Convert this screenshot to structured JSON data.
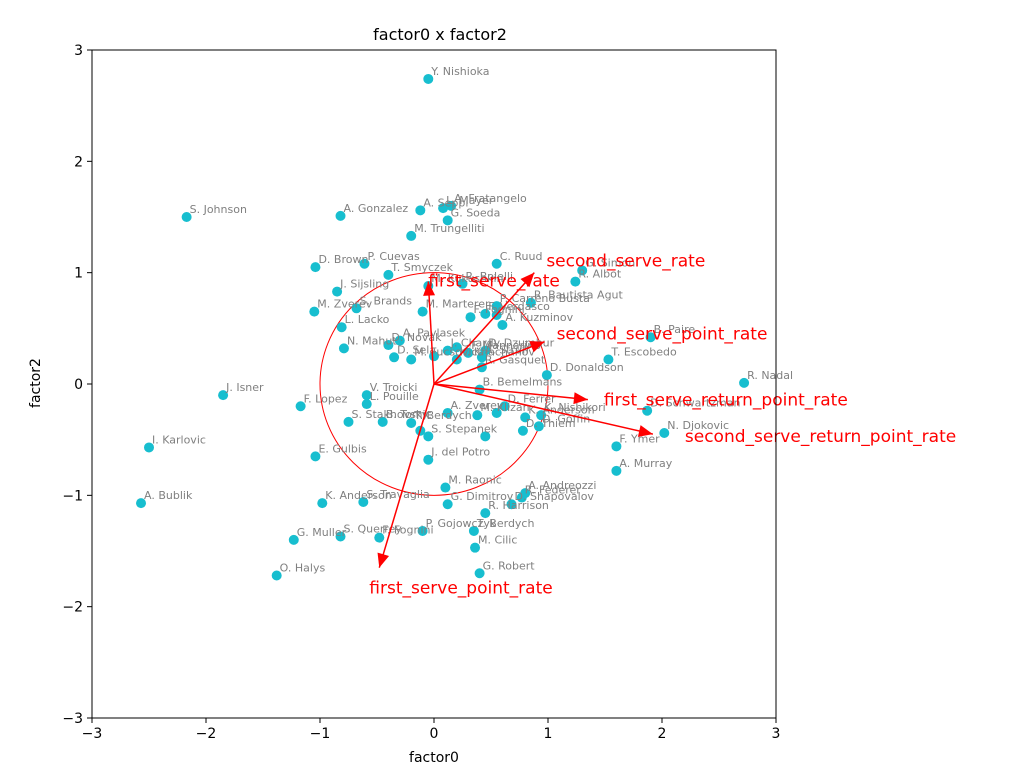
{
  "chart_data": {
    "type": "scatter",
    "title": "factor0 x factor2",
    "xlabel": "factor0",
    "ylabel": "factor2",
    "xlim": [
      -3,
      3
    ],
    "ylim": [
      -3,
      3
    ],
    "xticks": [
      "−3",
      "−2",
      "−1",
      "0",
      "1",
      "2",
      "3"
    ],
    "yticks": [
      "−3",
      "−2",
      "−1",
      "0",
      "1",
      "2",
      "3"
    ],
    "grid": false,
    "point_color": "#17becf",
    "arrow_color": "#ff0000",
    "circle_radius": 1,
    "points": [
      {
        "name": "Y. Nishioka",
        "x": -0.05,
        "y": 2.74
      },
      {
        "name": "S. Johnson",
        "x": -2.17,
        "y": 1.5
      },
      {
        "name": "A. Gonzalez",
        "x": -0.82,
        "y": 1.51
      },
      {
        "name": "A. Seppi",
        "x": -0.12,
        "y": 1.56
      },
      {
        "name": "L. Mayer",
        "x": 0.08,
        "y": 1.58
      },
      {
        "name": "A. Fratangelo",
        "x": 0.15,
        "y": 1.6
      },
      {
        "name": "G. Soeda",
        "x": 0.12,
        "y": 1.47
      },
      {
        "name": "M. Trungelliti",
        "x": -0.2,
        "y": 1.33
      },
      {
        "name": "D. Brown",
        "x": -1.04,
        "y": 1.05
      },
      {
        "name": "P. Cuevas",
        "x": -0.61,
        "y": 1.08
      },
      {
        "name": "T. Smyczek",
        "x": -0.4,
        "y": 0.98
      },
      {
        "name": "C. Ruud",
        "x": 0.55,
        "y": 1.08
      },
      {
        "name": "G. Simon",
        "x": 1.3,
        "y": 1.02
      },
      {
        "name": "J. Sijsling",
        "x": -0.85,
        "y": 0.83
      },
      {
        "name": "M. Kukushkin",
        "x": -0.05,
        "y": 0.88
      },
      {
        "name": "R. Bolelli",
        "x": 0.25,
        "y": 0.9
      },
      {
        "name": "R. Albot",
        "x": 1.24,
        "y": 0.92
      },
      {
        "name": "M. Zverev",
        "x": -1.05,
        "y": 0.65
      },
      {
        "name": "S. Brands",
        "x": -0.68,
        "y": 0.68
      },
      {
        "name": "M. Marterer",
        "x": -0.1,
        "y": 0.65
      },
      {
        "name": "R. Bautista Agut",
        "x": 0.85,
        "y": 0.73
      },
      {
        "name": "P. Carreno Busta",
        "x": 0.55,
        "y": 0.7
      },
      {
        "name": "F. Verdasco",
        "x": 0.45,
        "y": 0.63
      },
      {
        "name": "F. Fognini",
        "x": 0.32,
        "y": 0.6
      },
      {
        "name": "L. Lacko",
        "x": -0.81,
        "y": 0.51
      },
      {
        "name": "A. Kuzminov",
        "x": 0.6,
        "y": 0.53
      },
      {
        "name": "A. Ramos",
        "x": 0.55,
        "y": 0.62
      },
      {
        "name": "B. Paire",
        "x": 1.9,
        "y": 0.42
      },
      {
        "name": "A. Pavlasek",
        "x": -0.3,
        "y": 0.39
      },
      {
        "name": "D. Novak",
        "x": -0.4,
        "y": 0.35
      },
      {
        "name": "N. Mahut",
        "x": -0.79,
        "y": 0.32
      },
      {
        "name": "J. Chardy",
        "x": 0.12,
        "y": 0.3
      },
      {
        "name": "D. Schwartz",
        "x": 0.2,
        "y": 0.33
      },
      {
        "name": "F. Mannarino",
        "x": 0.3,
        "y": 0.28
      },
      {
        "name": "D. Dzumhur",
        "x": 0.45,
        "y": 0.3
      },
      {
        "name": "A. Struff",
        "x": 0.42,
        "y": 0.24
      },
      {
        "name": "K. Khachanov",
        "x": 0.2,
        "y": 0.22
      },
      {
        "name": "J. Sock",
        "x": 0.0,
        "y": 0.25
      },
      {
        "name": "D. Sela",
        "x": -0.35,
        "y": 0.24
      },
      {
        "name": "M. Fucsovics",
        "x": -0.2,
        "y": 0.22
      },
      {
        "name": "R. Gasquet",
        "x": 0.42,
        "y": 0.15
      },
      {
        "name": "T. Escobedo",
        "x": 1.53,
        "y": 0.22
      },
      {
        "name": "D. Donaldson",
        "x": 0.99,
        "y": 0.08
      },
      {
        "name": "R. Nadal",
        "x": 2.72,
        "y": 0.01
      },
      {
        "name": "V. Troicki",
        "x": -0.59,
        "y": -0.1
      },
      {
        "name": "J. Isner",
        "x": -1.85,
        "y": -0.1
      },
      {
        "name": "B. Bemelmans",
        "x": 0.4,
        "y": -0.05
      },
      {
        "name": "F. Lopez",
        "x": -1.17,
        "y": -0.2
      },
      {
        "name": "L. Pouille",
        "x": -0.59,
        "y": -0.18
      },
      {
        "name": "D. Ferrer",
        "x": 0.62,
        "y": -0.2
      },
      {
        "name": "K. Nishikori",
        "x": 0.94,
        "y": -0.28
      },
      {
        "name": "D. Schwartzman",
        "x": 1.87,
        "y": -0.24
      },
      {
        "name": "A. Zverev",
        "x": 0.12,
        "y": -0.26
      },
      {
        "name": "M. Klizan",
        "x": 0.38,
        "y": -0.28
      },
      {
        "name": "K. Anderson",
        "x": 0.8,
        "y": -0.3
      },
      {
        "name": "R. Federer",
        "x": 0.55,
        "y": -0.26
      },
      {
        "name": "S. Stakhovsky",
        "x": -0.75,
        "y": -0.34
      },
      {
        "name": "B. Tomic",
        "x": -0.45,
        "y": -0.34
      },
      {
        "name": "T. Berdych",
        "x": -0.2,
        "y": -0.35
      },
      {
        "name": "D. Goffin",
        "x": 0.92,
        "y": -0.38
      },
      {
        "name": "N. Djokovic",
        "x": 2.02,
        "y": -0.44
      },
      {
        "name": "D. Thiem",
        "x": 0.78,
        "y": -0.42
      },
      {
        "name": "J. Vesely",
        "x": -0.12,
        "y": -0.42
      },
      {
        "name": "S. Stepanek",
        "x": -0.05,
        "y": -0.47
      },
      {
        "name": "S. Tsitsipas",
        "x": 0.45,
        "y": -0.47
      },
      {
        "name": "F. Ymer",
        "x": 1.6,
        "y": -0.56
      },
      {
        "name": "I. Karlovic",
        "x": -2.5,
        "y": -0.57
      },
      {
        "name": "E. Gulbis",
        "x": -1.04,
        "y": -0.65
      },
      {
        "name": "J. del Potro",
        "x": -0.05,
        "y": -0.68
      },
      {
        "name": "A. Murray",
        "x": 1.6,
        "y": -0.78
      },
      {
        "name": "M. Raonic",
        "x": 0.1,
        "y": -0.93
      },
      {
        "name": "A. Andreozzi",
        "x": 0.8,
        "y": -0.98
      },
      {
        "name": "R. Federer",
        "x": 0.77,
        "y": -1.02
      },
      {
        "name": "A. Bublik",
        "x": -2.57,
        "y": -1.07
      },
      {
        "name": "K. Anderson",
        "x": -0.98,
        "y": -1.07
      },
      {
        "name": "S. Travaglia",
        "x": -0.62,
        "y": -1.06
      },
      {
        "name": "G. Dimitrov",
        "x": 0.12,
        "y": -1.08
      },
      {
        "name": "D. Shapovalov",
        "x": 0.68,
        "y": -1.08
      },
      {
        "name": "R. Harrison",
        "x": 0.45,
        "y": -1.16
      },
      {
        "name": "P. Gojowczyk",
        "x": -0.1,
        "y": -1.32
      },
      {
        "name": "T. Berdych",
        "x": 0.35,
        "y": -1.32
      },
      {
        "name": "S. Querrey",
        "x": -0.82,
        "y": -1.37
      },
      {
        "name": "F. Fognini",
        "x": -0.48,
        "y": -1.38
      },
      {
        "name": "G. Muller",
        "x": -1.23,
        "y": -1.4
      },
      {
        "name": "M. Cilic",
        "x": 0.36,
        "y": -1.47
      },
      {
        "name": "G. Robert",
        "x": 0.4,
        "y": -1.7
      },
      {
        "name": "O. Halys",
        "x": -1.38,
        "y": -1.72
      }
    ],
    "labels": [
      {
        "text": "Y. Nishioka",
        "x": -0.05,
        "y": 2.74
      },
      {
        "text": "S. Johnson",
        "x": -2.17,
        "y": 1.5
      },
      {
        "text": "A. Gonzalez",
        "x": -0.82,
        "y": 1.51
      },
      {
        "text": "A. Seppi",
        "x": -0.12,
        "y": 1.56
      },
      {
        "text": "L. Mayer",
        "x": 0.08,
        "y": 1.58
      },
      {
        "text": "A. Fratangelo",
        "x": 0.15,
        "y": 1.6
      },
      {
        "text": "G. Soeda",
        "x": 0.12,
        "y": 1.47
      },
      {
        "text": "M. Trungelliti",
        "x": -0.2,
        "y": 1.33
      },
      {
        "text": "D. Brown",
        "x": -1.04,
        "y": 1.05
      },
      {
        "text": "P. Cuevas",
        "x": -0.61,
        "y": 1.08
      },
      {
        "text": "T. Smyczek",
        "x": -0.4,
        "y": 0.98
      },
      {
        "text": "C. Ruud",
        "x": 0.55,
        "y": 1.08
      },
      {
        "text": "G. Simon",
        "x": 1.3,
        "y": 1.02
      },
      {
        "text": "J. Sijsling",
        "x": -0.85,
        "y": 0.83
      },
      {
        "text": "M. Kukushkin",
        "x": -0.05,
        "y": 0.88
      },
      {
        "text": "R. Bolelli",
        "x": 0.25,
        "y": 0.9
      },
      {
        "text": "R. Albot",
        "x": 1.24,
        "y": 0.92
      },
      {
        "text": "M. Zverev",
        "x": -1.05,
        "y": 0.65
      },
      {
        "text": "S. Brands",
        "x": -0.68,
        "y": 0.68
      },
      {
        "text": "M. Marterer",
        "x": -0.1,
        "y": 0.65
      },
      {
        "text": "R. Bautista Agut",
        "x": 0.85,
        "y": 0.73
      },
      {
        "text": "P. Carreno Busta",
        "x": 0.55,
        "y": 0.7
      },
      {
        "text": "F. Verdasco",
        "x": 0.45,
        "y": 0.63
      },
      {
        "text": "F. Fognini",
        "x": 0.32,
        "y": 0.6
      },
      {
        "text": "L. Lacko",
        "x": -0.81,
        "y": 0.51
      },
      {
        "text": "A. Kuzminov",
        "x": 0.6,
        "y": 0.53
      },
      {
        "text": "B. Paire",
        "x": 1.9,
        "y": 0.42
      },
      {
        "text": "A. Pavlasek",
        "x": -0.3,
        "y": 0.39
      },
      {
        "text": "D. Novak",
        "x": -0.4,
        "y": 0.35
      },
      {
        "text": "N. Mahut",
        "x": -0.79,
        "y": 0.32
      },
      {
        "text": "J. Chardy",
        "x": 0.12,
        "y": 0.3
      },
      {
        "text": "F. Mannarino",
        "x": 0.3,
        "y": 0.28
      },
      {
        "text": "D. Dzumhur",
        "x": 0.45,
        "y": 0.3
      },
      {
        "text": "A. Struff",
        "x": 0.42,
        "y": 0.24
      },
      {
        "text": "K. Khachanov",
        "x": 0.2,
        "y": 0.22
      },
      {
        "text": "D. Sela",
        "x": -0.35,
        "y": 0.24
      },
      {
        "text": "M. Fucsovics",
        "x": -0.2,
        "y": 0.22
      },
      {
        "text": "R. Gasquet",
        "x": 0.42,
        "y": 0.15
      },
      {
        "text": "T. Escobedo",
        "x": 1.53,
        "y": 0.22
      },
      {
        "text": "D. Donaldson",
        "x": 0.99,
        "y": 0.08
      },
      {
        "text": "R. Nadal",
        "x": 2.72,
        "y": 0.01
      },
      {
        "text": "V. Troicki",
        "x": -0.59,
        "y": -0.1
      },
      {
        "text": "J. Isner",
        "x": -1.85,
        "y": -0.1
      },
      {
        "text": "B. Bemelmans",
        "x": 0.4,
        "y": -0.05
      },
      {
        "text": "F. Lopez",
        "x": -1.17,
        "y": -0.2
      },
      {
        "text": "L. Pouille",
        "x": -0.59,
        "y": -0.18
      },
      {
        "text": "D. Ferrer",
        "x": 0.62,
        "y": -0.2
      },
      {
        "text": "K. Nishikori",
        "x": 0.94,
        "y": -0.28
      },
      {
        "text": "D. Schwartzman",
        "x": 1.87,
        "y": -0.24
      },
      {
        "text": "A. Zverev",
        "x": 0.12,
        "y": -0.26
      },
      {
        "text": "M. Klizan",
        "x": 0.38,
        "y": -0.28
      },
      {
        "text": "K. Anderson",
        "x": 0.8,
        "y": -0.3
      },
      {
        "text": "S. Stakhovsky",
        "x": -0.75,
        "y": -0.34
      },
      {
        "text": "B. Tomic",
        "x": -0.45,
        "y": -0.34
      },
      {
        "text": "T. Berdych",
        "x": -0.2,
        "y": -0.35
      },
      {
        "text": "D. Goffin",
        "x": 0.92,
        "y": -0.38
      },
      {
        "text": "N. Djokovic",
        "x": 2.02,
        "y": -0.44
      },
      {
        "text": "D. Thiem",
        "x": 0.78,
        "y": -0.42
      },
      {
        "text": "S. Stepanek",
        "x": -0.05,
        "y": -0.47
      },
      {
        "text": "F. Ymer",
        "x": 1.6,
        "y": -0.56
      },
      {
        "text": "I. Karlovic",
        "x": -2.5,
        "y": -0.57
      },
      {
        "text": "E. Gulbis",
        "x": -1.04,
        "y": -0.65
      },
      {
        "text": "J. del Potro",
        "x": -0.05,
        "y": -0.68
      },
      {
        "text": "A. Murray",
        "x": 1.6,
        "y": -0.78
      },
      {
        "text": "M. Raonic",
        "x": 0.1,
        "y": -0.93
      },
      {
        "text": "A. Andreozzi",
        "x": 0.8,
        "y": -0.98
      },
      {
        "text": "R. Federer",
        "x": 0.77,
        "y": -1.02
      },
      {
        "text": "A. Bublik",
        "x": -2.57,
        "y": -1.07
      },
      {
        "text": "K. Anderson",
        "x": -0.98,
        "y": -1.07
      },
      {
        "text": "S. Travaglia",
        "x": -0.62,
        "y": -1.06
      },
      {
        "text": "G. Dimitrov",
        "x": 0.12,
        "y": -1.08
      },
      {
        "text": "D. Shapovalov",
        "x": 0.68,
        "y": -1.08
      },
      {
        "text": "R. Harrison",
        "x": 0.45,
        "y": -1.16
      },
      {
        "text": "P. Gojowczyk",
        "x": -0.1,
        "y": -1.32
      },
      {
        "text": "T. Berdych",
        "x": 0.35,
        "y": -1.32
      },
      {
        "text": "S. Querrey",
        "x": -0.82,
        "y": -1.37
      },
      {
        "text": "F. Fognini",
        "x": -0.48,
        "y": -1.38
      },
      {
        "text": "G. Muller",
        "x": -1.23,
        "y": -1.4
      },
      {
        "text": "M. Cilic",
        "x": 0.36,
        "y": -1.47
      },
      {
        "text": "G. Robert",
        "x": 0.4,
        "y": -1.7
      },
      {
        "text": "O. Halys",
        "x": -1.38,
        "y": -1.72
      }
    ],
    "vectors": [
      {
        "name": "second_serve_rate",
        "x": 0.88,
        "y": 1.0
      },
      {
        "name": "first_serve_rate",
        "x": -0.05,
        "y": 0.92
      },
      {
        "name": "second_serve_point_rate",
        "x": 0.97,
        "y": 0.38
      },
      {
        "name": "first_serve_return_point_rate",
        "x": 1.35,
        "y": -0.14
      },
      {
        "name": "second_serve_return_point_rate",
        "x": 1.92,
        "y": -0.45
      },
      {
        "name": "first_serve_point_rate",
        "x": -0.48,
        "y": -1.65
      }
    ]
  }
}
